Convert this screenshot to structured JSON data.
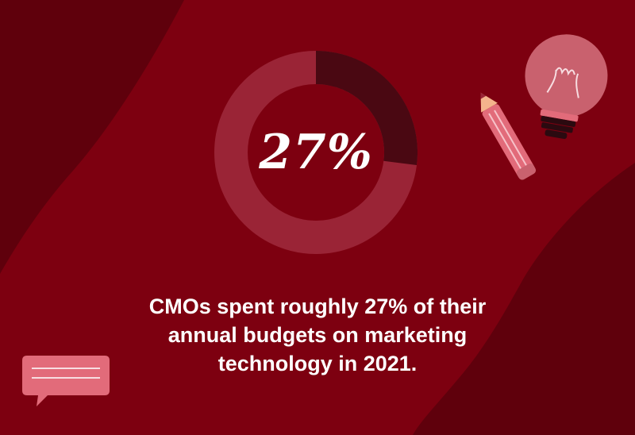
{
  "colors": {
    "background": "#7d0010",
    "dark_blob": "#5f000c",
    "donut_track": "#9a2436",
    "donut_highlight": "#4a0812",
    "accent_pink": "#e26b7a",
    "bulb_pink": "#c9616e"
  },
  "chart_data": {
    "type": "pie",
    "donut": true,
    "center_label": "27%",
    "slices": [
      {
        "value": 27
      },
      {
        "value": 73
      }
    ]
  },
  "caption": {
    "line1": "CMOs spent roughly 27% of their",
    "line2": "annual budgets on marketing",
    "line3": "technology in 2021."
  },
  "icons": {
    "pencil": "pencil-icon",
    "bulb": "lightbulb-icon",
    "bubble": "chat-bubble-icon"
  }
}
